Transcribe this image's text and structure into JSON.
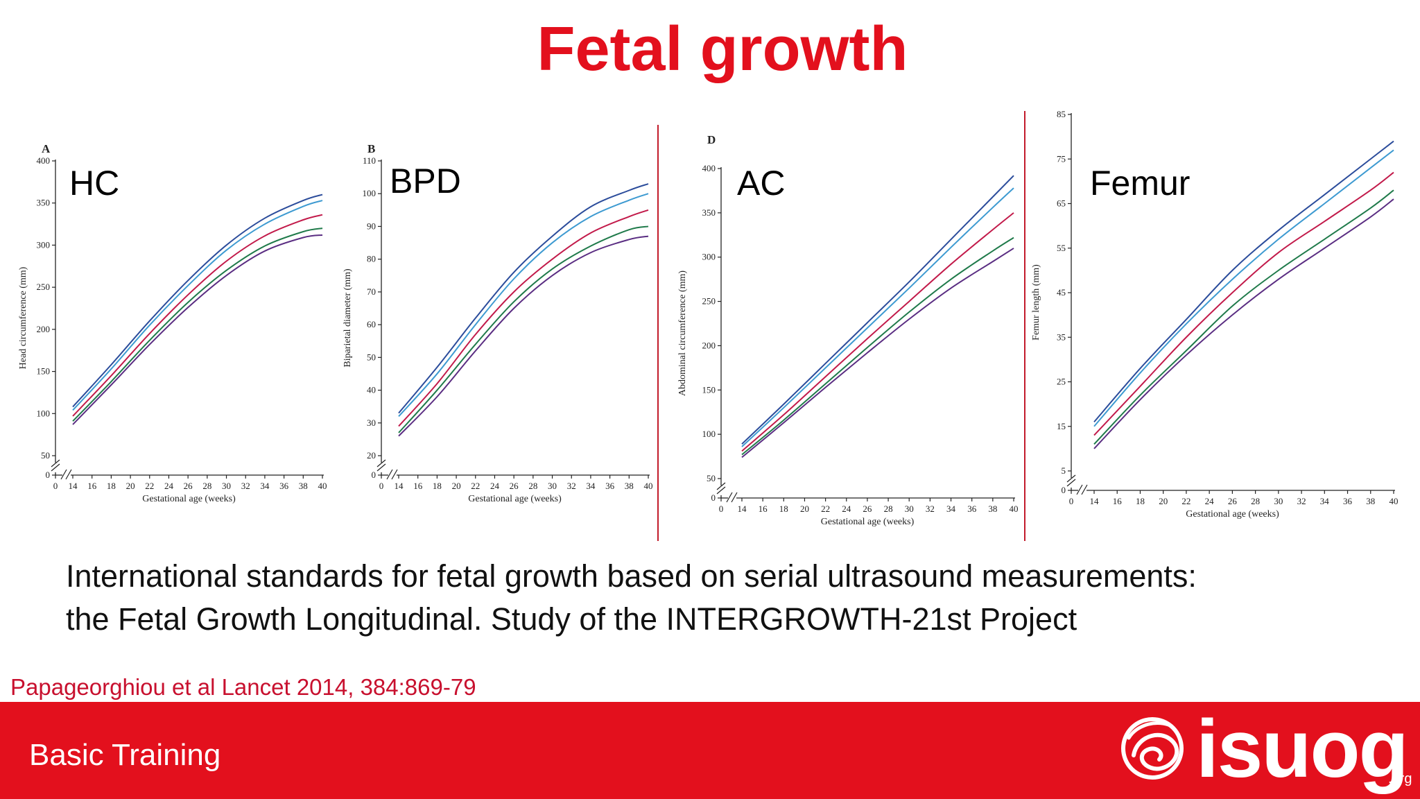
{
  "slide": {
    "title": "Fetal growth",
    "caption_line1": "International standards for fetal growth based on serial ultrasound measurements:",
    "caption_line2": "the Fetal Growth Longitudinal. Study of the INTERGROWTH-21st Project",
    "citation": "Papageorghiou et al Lancet 2014, 384:869-79",
    "footer_text": "Basic Training",
    "logo_word": "isuog",
    "logo_suffix": ".org",
    "colors": {
      "title_red": "#e3101d",
      "footer_red": "#e3101d",
      "citation_red": "#c8102e",
      "separator": "#c21a2a"
    }
  },
  "chart_data": [
    {
      "type": "line",
      "big_label": "HC",
      "panel_letter": "A",
      "xlabel": "Gestational age (weeks)",
      "ylabel": "Head circumference (mm)",
      "x_ticks": [
        0,
        14,
        16,
        18,
        20,
        22,
        24,
        26,
        28,
        30,
        32,
        34,
        36,
        38,
        40
      ],
      "y_ticks": [
        0,
        50,
        100,
        150,
        200,
        250,
        300,
        350,
        400
      ],
      "ylim": [
        0,
        400
      ],
      "x": [
        14,
        18,
        22,
        26,
        30,
        34,
        38,
        40
      ],
      "series": [
        {
          "color": "#2b4c9b",
          "values": [
            108,
            158,
            210,
            258,
            300,
            332,
            353,
            360
          ]
        },
        {
          "color": "#3d9ad1",
          "values": [
            104,
            153,
            205,
            252,
            294,
            325,
            346,
            353
          ]
        },
        {
          "color": "#c21a4a",
          "values": [
            97,
            145,
            195,
            241,
            281,
            311,
            330,
            336
          ]
        },
        {
          "color": "#1f7a4a",
          "values": [
            91,
            138,
            187,
            232,
            270,
            299,
            316,
            320
          ]
        },
        {
          "color": "#5a2d82",
          "values": [
            87,
            134,
            182,
            226,
            264,
            293,
            309,
            312
          ]
        }
      ]
    },
    {
      "type": "line",
      "big_label": "BPD",
      "panel_letter": "B",
      "xlabel": "Gestational age (weeks)",
      "ylabel": "Biparietal diameter (mm)",
      "x_ticks": [
        0,
        14,
        16,
        18,
        20,
        22,
        24,
        26,
        28,
        30,
        32,
        34,
        36,
        38,
        40
      ],
      "y_ticks": [
        0,
        20,
        30,
        40,
        50,
        60,
        70,
        80,
        90,
        100,
        110
      ],
      "ylim": [
        0,
        110
      ],
      "x": [
        14,
        18,
        22,
        26,
        30,
        34,
        38,
        40
      ],
      "series": [
        {
          "color": "#2b4c9b",
          "values": [
            33,
            47,
            62,
            76,
            87,
            96,
            101,
            103
          ]
        },
        {
          "color": "#3d9ad1",
          "values": [
            32,
            45,
            60,
            74,
            85,
            93,
            98,
            100
          ]
        },
        {
          "color": "#c21a4a",
          "values": [
            29,
            42,
            57,
            70,
            80,
            88,
            93,
            95
          ]
        },
        {
          "color": "#1f7a4a",
          "values": [
            27,
            40,
            54,
            67,
            77,
            84,
            89,
            90
          ]
        },
        {
          "color": "#5a2d82",
          "values": [
            26,
            38,
            52,
            65,
            75,
            82,
            86,
            87
          ]
        }
      ]
    },
    {
      "type": "line",
      "big_label": "AC",
      "panel_letter": "D",
      "xlabel": "Gestational age (weeks)",
      "ylabel": "Abdominal circumference (mm)",
      "x_ticks": [
        0,
        14,
        16,
        18,
        20,
        22,
        24,
        26,
        28,
        30,
        32,
        34,
        36,
        38,
        40
      ],
      "y_ticks": [
        0,
        50,
        100,
        150,
        200,
        250,
        300,
        350,
        400
      ],
      "ylim": [
        0,
        400
      ],
      "x": [
        14,
        18,
        22,
        26,
        30,
        34,
        38,
        40
      ],
      "series": [
        {
          "color": "#2b4c9b",
          "values": [
            89,
            134,
            180,
            226,
            272,
            320,
            368,
            392
          ]
        },
        {
          "color": "#3d9ad1",
          "values": [
            86,
            130,
            175,
            220,
            265,
            311,
            356,
            378
          ]
        },
        {
          "color": "#c21a4a",
          "values": [
            81,
            122,
            165,
            208,
            250,
            292,
            331,
            350
          ]
        },
        {
          "color": "#1f7a4a",
          "values": [
            77,
            116,
            157,
            198,
            238,
            275,
            307,
            322
          ]
        },
        {
          "color": "#5a2d82",
          "values": [
            74,
            113,
            153,
            192,
            230,
            265,
            295,
            310
          ]
        }
      ]
    },
    {
      "type": "line",
      "big_label": "Femur",
      "panel_letter": "",
      "xlabel": "Gestational age (weeks)",
      "ylabel": "Femur length (mm)",
      "x_ticks": [
        0,
        14,
        16,
        18,
        20,
        22,
        24,
        26,
        28,
        30,
        32,
        34,
        36,
        38,
        40
      ],
      "y_ticks": [
        0,
        5,
        15,
        25,
        35,
        45,
        55,
        65,
        75,
        85
      ],
      "ylim": [
        0,
        85
      ],
      "x": [
        14,
        18,
        22,
        26,
        30,
        34,
        38,
        40
      ],
      "series": [
        {
          "color": "#2b4c9b",
          "values": [
            16,
            28,
            39,
            50,
            59,
            67,
            75,
            79
          ]
        },
        {
          "color": "#3d9ad1",
          "values": [
            15,
            27,
            38,
            48,
            57,
            65,
            73,
            77
          ]
        },
        {
          "color": "#c21a4a",
          "values": [
            13,
            24,
            35,
            45,
            54,
            61,
            68,
            72
          ]
        },
        {
          "color": "#1f7a4a",
          "values": [
            11,
            22,
            32,
            42,
            50,
            57,
            64,
            68
          ]
        },
        {
          "color": "#5a2d82",
          "values": [
            10,
            21,
            31,
            40,
            48,
            55,
            62,
            66
          ]
        }
      ]
    }
  ]
}
